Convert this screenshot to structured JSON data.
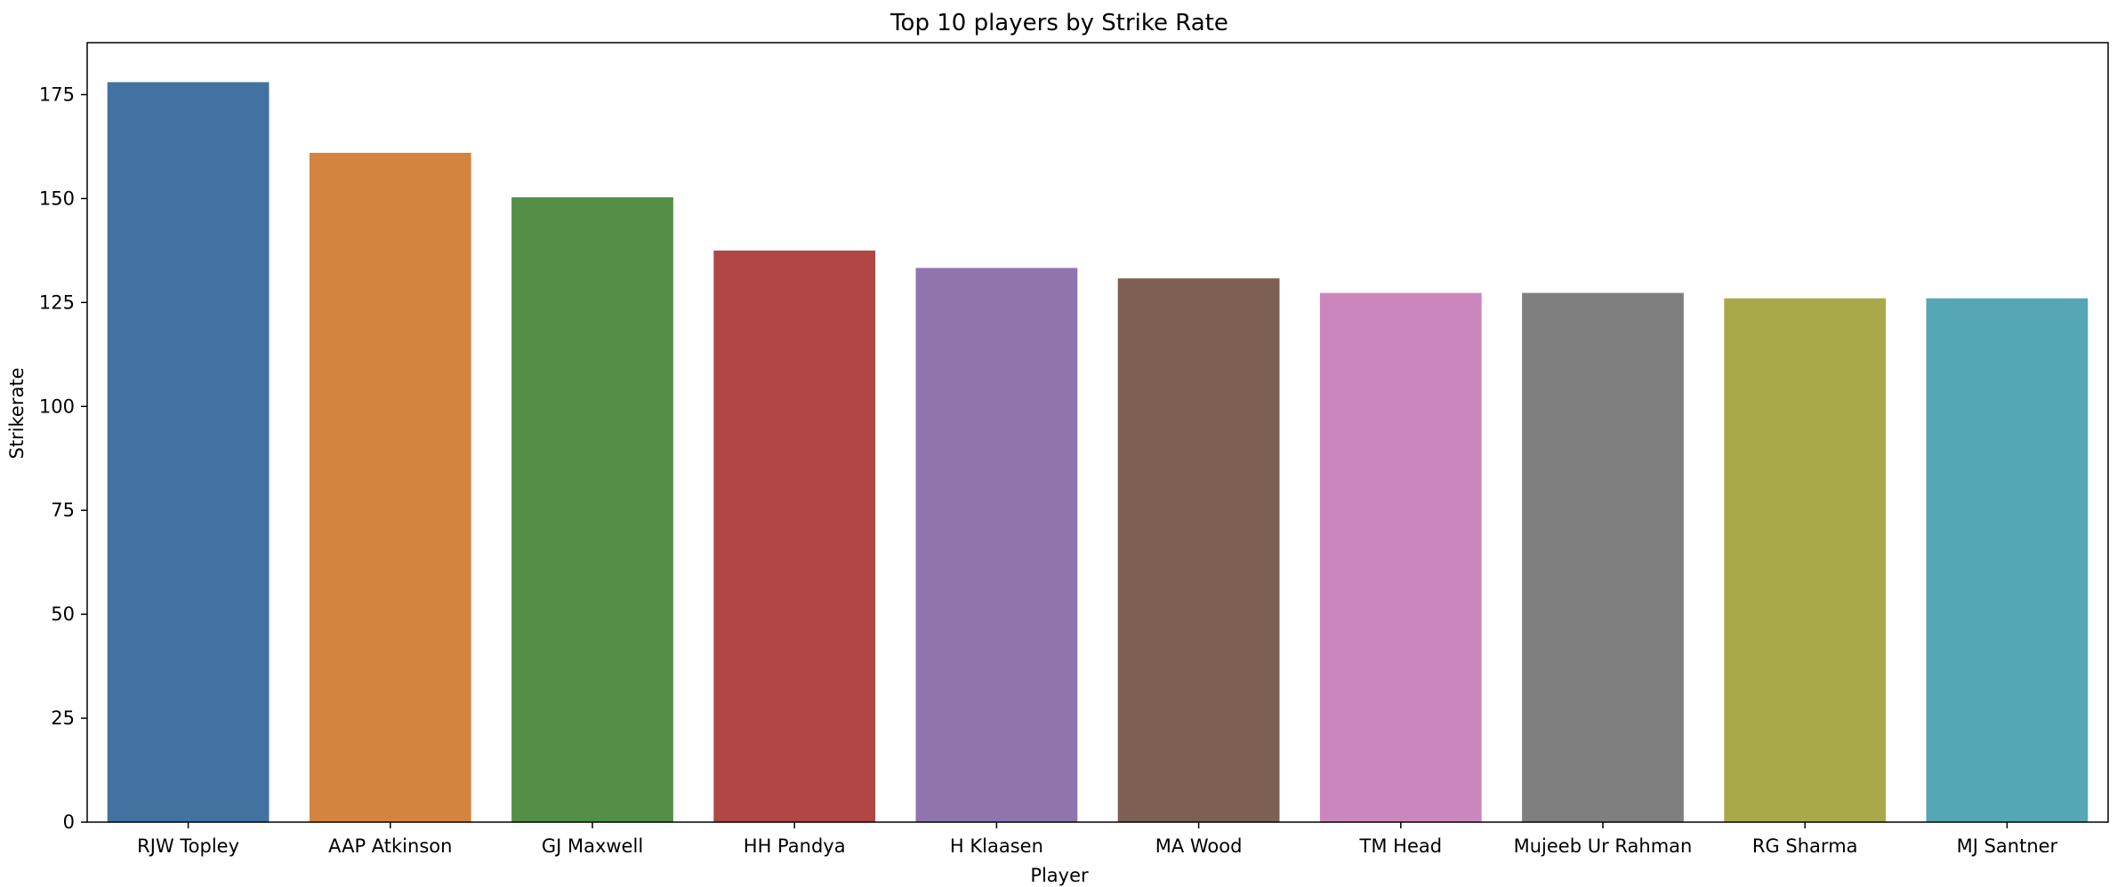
{
  "chart_data": {
    "type": "bar",
    "title": "Top 10 players by Strike Rate",
    "xlabel": "Player",
    "ylabel": "Strikerate",
    "ylim": [
      0,
      187.5
    ],
    "yticks": [
      0,
      25,
      50,
      75,
      100,
      125,
      150,
      175
    ],
    "grid": false,
    "categories": [
      "RJW Topley",
      "AAP Atkinson",
      "GJ Maxwell",
      "HH Pandya",
      "H Klaasen",
      "MA Wood",
      "TM Head",
      "Mujeeb Ur Rahman",
      "RG Sharma",
      "MJ Santner"
    ],
    "values": [
      178.0,
      161.0,
      150.3,
      137.5,
      133.3,
      130.8,
      127.3,
      127.3,
      126.0,
      126.0
    ],
    "colors": [
      "#4272a0",
      "#d5843f",
      "#538f47",
      "#b04746",
      "#8f74ae",
      "#7d5f54",
      "#cb87bd",
      "#7f7f7f",
      "#a9a94a",
      "#56a7b5"
    ]
  }
}
